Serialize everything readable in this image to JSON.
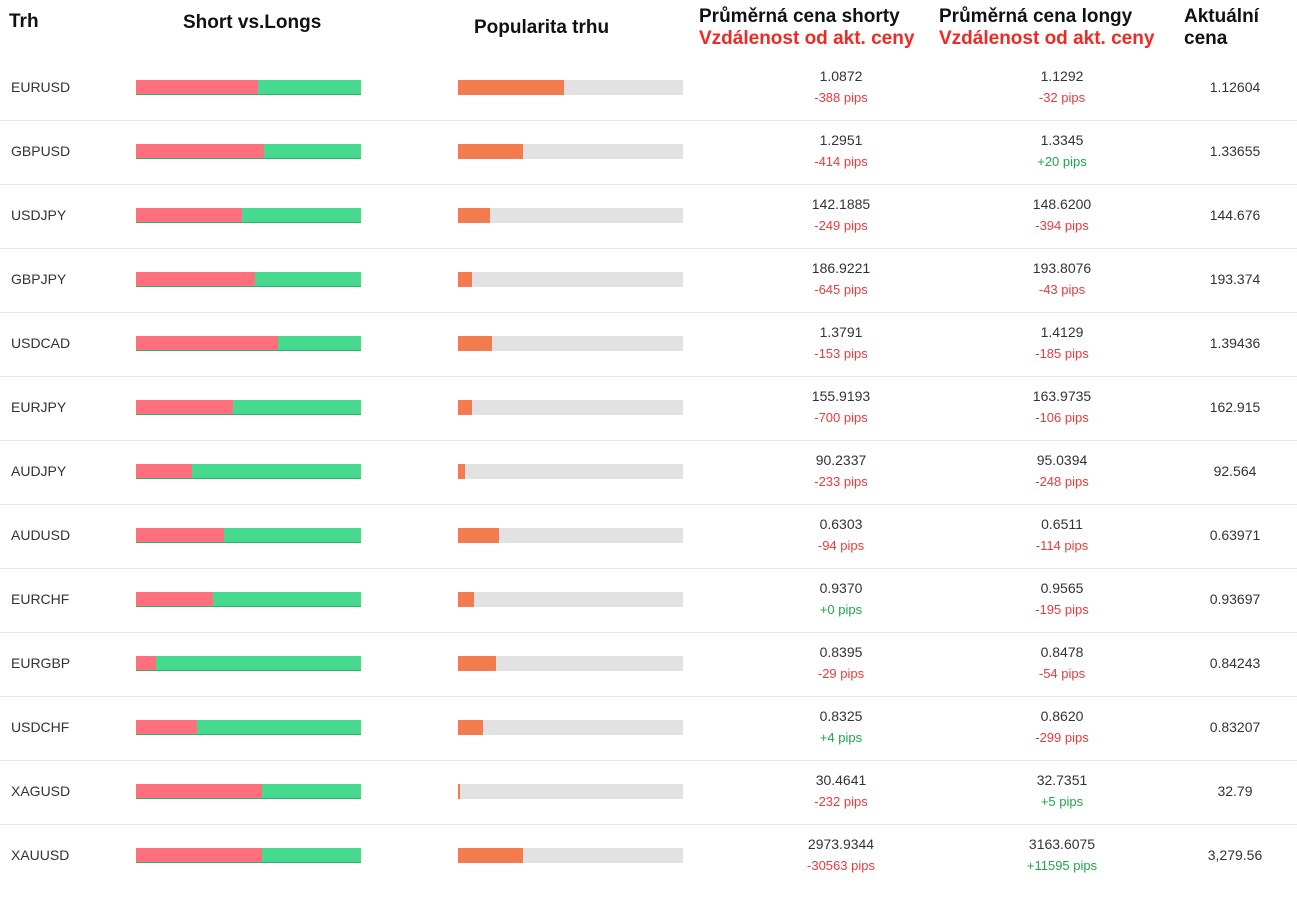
{
  "header": {
    "market": "Trh",
    "short_vs_longs": "Short vs.Longs",
    "popularity": "Popularita trhu",
    "avg_short_title": "Průměrná cena shorty",
    "avg_short_sub": "Vzdálenost od akt. ceny",
    "avg_long_title": "Průměrná cena longy",
    "avg_long_sub": "Vzdálenost od akt. ceny",
    "current_title_1": "Aktuální",
    "current_title_2": "cena"
  },
  "colors": {
    "short": "#ff6f7d",
    "long": "#47d98d",
    "popularity": "#f47b4d",
    "track": "#e2e2e2",
    "negative": "#ee3a3a",
    "positive": "#1ea64a",
    "header_sub": "#ee2a24"
  },
  "rows": [
    {
      "pair": "EURUSD",
      "short_pct": 54,
      "popularity": 0.47,
      "short_price": "1.0872",
      "short_pips": "-388 pips",
      "long_price": "1.1292",
      "long_pips": "-32 pips",
      "current": "1.12604"
    },
    {
      "pair": "GBPUSD",
      "short_pct": 57,
      "popularity": 0.29,
      "short_price": "1.2951",
      "short_pips": "-414 pips",
      "long_price": "1.3345",
      "long_pips": "+20 pips",
      "current": "1.33655"
    },
    {
      "pair": "USDJPY",
      "short_pct": 47,
      "popularity": 0.14,
      "short_price": "142.1885",
      "short_pips": "-249 pips",
      "long_price": "148.6200",
      "long_pips": "-394 pips",
      "current": "144.676"
    },
    {
      "pair": "GBPJPY",
      "short_pct": 53,
      "popularity": 0.06,
      "short_price": "186.9221",
      "short_pips": "-645 pips",
      "long_price": "193.8076",
      "long_pips": "-43 pips",
      "current": "193.374"
    },
    {
      "pair": "USDCAD",
      "short_pct": 63,
      "popularity": 0.15,
      "short_price": "1.3791",
      "short_pips": "-153 pips",
      "long_price": "1.4129",
      "long_pips": "-185 pips",
      "current": "1.39436"
    },
    {
      "pair": "EURJPY",
      "short_pct": 43,
      "popularity": 0.06,
      "short_price": "155.9193",
      "short_pips": "-700 pips",
      "long_price": "163.9735",
      "long_pips": "-106 pips",
      "current": "162.915"
    },
    {
      "pair": "AUDJPY",
      "short_pct": 25,
      "popularity": 0.03,
      "short_price": "90.2337",
      "short_pips": "-233 pips",
      "long_price": "95.0394",
      "long_pips": "-248 pips",
      "current": "92.564"
    },
    {
      "pair": "AUDUSD",
      "short_pct": 39,
      "popularity": 0.18,
      "short_price": "0.6303",
      "short_pips": "-94 pips",
      "long_price": "0.6511",
      "long_pips": "-114 pips",
      "current": "0.63971"
    },
    {
      "pair": "EURCHF",
      "short_pct": 34,
      "popularity": 0.07,
      "short_price": "0.9370",
      "short_pips": "+0 pips",
      "long_price": "0.9565",
      "long_pips": "-195 pips",
      "current": "0.93697"
    },
    {
      "pair": "EURGBP",
      "short_pct": 9,
      "popularity": 0.17,
      "short_price": "0.8395",
      "short_pips": "-29 pips",
      "long_price": "0.8478",
      "long_pips": "-54 pips",
      "current": "0.84243"
    },
    {
      "pair": "USDCHF",
      "short_pct": 27,
      "popularity": 0.11,
      "short_price": "0.8325",
      "short_pips": "+4 pips",
      "long_price": "0.8620",
      "long_pips": "-299 pips",
      "current": "0.83207"
    },
    {
      "pair": "XAGUSD",
      "short_pct": 56,
      "popularity": 0.01,
      "short_price": "30.4641",
      "short_pips": "-232 pips",
      "long_price": "32.7351",
      "long_pips": "+5 pips",
      "current": "32.79"
    },
    {
      "pair": "XAUUSD",
      "short_pct": 56,
      "popularity": 0.29,
      "short_price": "2973.9344",
      "short_pips": "-30563 pips",
      "long_price": "3163.6075",
      "long_pips": "+11595 pips",
      "current": "3,279.56"
    }
  ]
}
